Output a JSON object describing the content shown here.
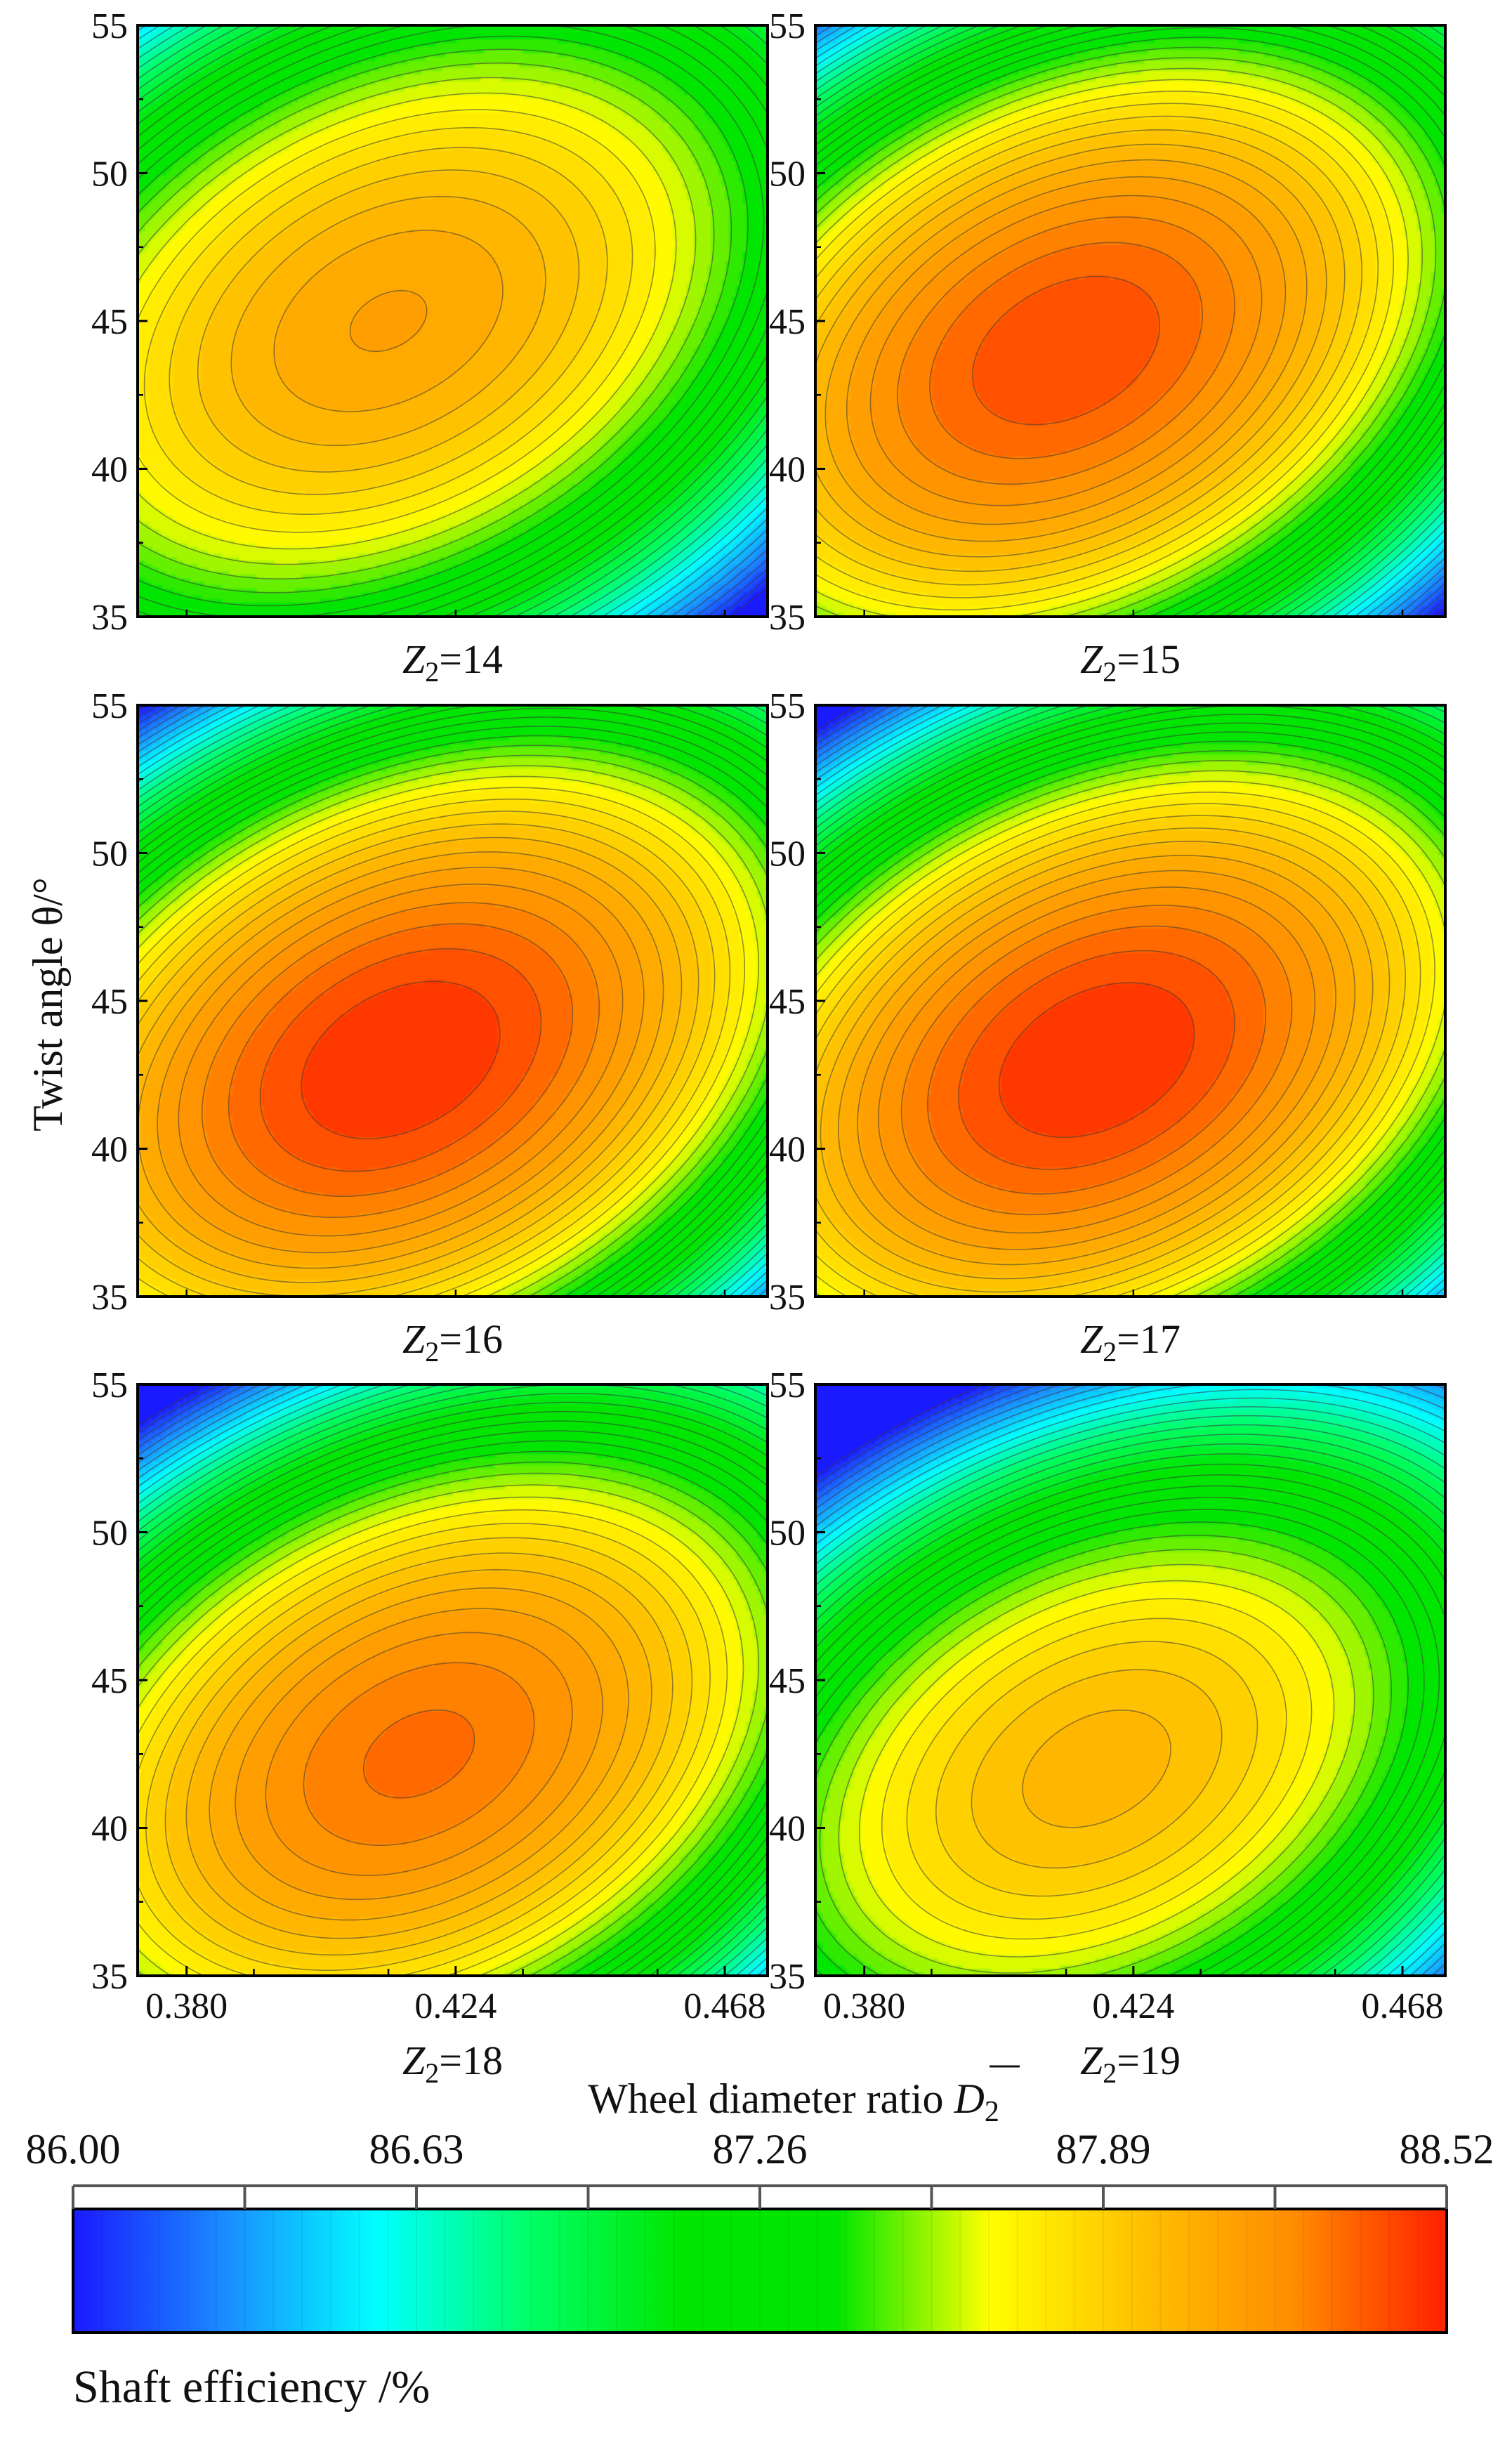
{
  "chart_data": {
    "type": "heatmap",
    "subtype": "filled-contour",
    "xlabel": "Wheel diameter ratio",
    "xlabel_symbol": "D",
    "xlabel_subscript": "2",
    "ylabel": "Twist angle θ/°",
    "xlim": [
      0.372,
      0.475
    ],
    "ylim": [
      35,
      55
    ],
    "x_ticks": [
      "0.380",
      "0.424",
      "0.468"
    ],
    "y_ticks": [
      "35",
      "40",
      "45",
      "50",
      "55"
    ],
    "grid": false,
    "panels": [
      {
        "label_var": "Z",
        "label_sub": "2",
        "label_value": "=14",
        "peak_x": 0.413,
        "peak_y": 45.0,
        "peak_value": 88.15,
        "corner_value": 87.0
      },
      {
        "label_var": "Z",
        "label_sub": "2",
        "label_value": "=15",
        "peak_x": 0.413,
        "peak_y": 44.0,
        "peak_value": 88.45,
        "corner_value": 86.95
      },
      {
        "label_var": "Z",
        "label_sub": "2",
        "label_value": "=16",
        "peak_x": 0.415,
        "peak_y": 43.0,
        "peak_value": 88.52,
        "corner_value": 86.9
      },
      {
        "label_var": "Z",
        "label_sub": "2",
        "label_value": "=17",
        "peak_x": 0.418,
        "peak_y": 43.0,
        "peak_value": 88.52,
        "corner_value": 86.9
      },
      {
        "label_var": "Z",
        "label_sub": "2",
        "label_value": "=18",
        "peak_x": 0.418,
        "peak_y": 42.5,
        "peak_value": 88.35,
        "corner_value": 86.75
      },
      {
        "label_var": "Z",
        "label_sub": "2",
        "label_value": "=19",
        "peak_x": 0.418,
        "peak_y": 42.0,
        "peak_value": 88.05,
        "corner_value": 86.35
      }
    ],
    "colorbar": {
      "title": "Shaft efficiency /%",
      "min": 86.0,
      "max": 88.52,
      "ticks": [
        "86.00",
        "86.63",
        "87.26",
        "87.89",
        "88.52"
      ],
      "colormap": [
        "#1a1aff",
        "#1a8cff",
        "#00ffff",
        "#00ff66",
        "#00e600",
        "#00e600",
        "#ffff00",
        "#ffc000",
        "#ff8c00",
        "#ff2000"
      ]
    }
  }
}
